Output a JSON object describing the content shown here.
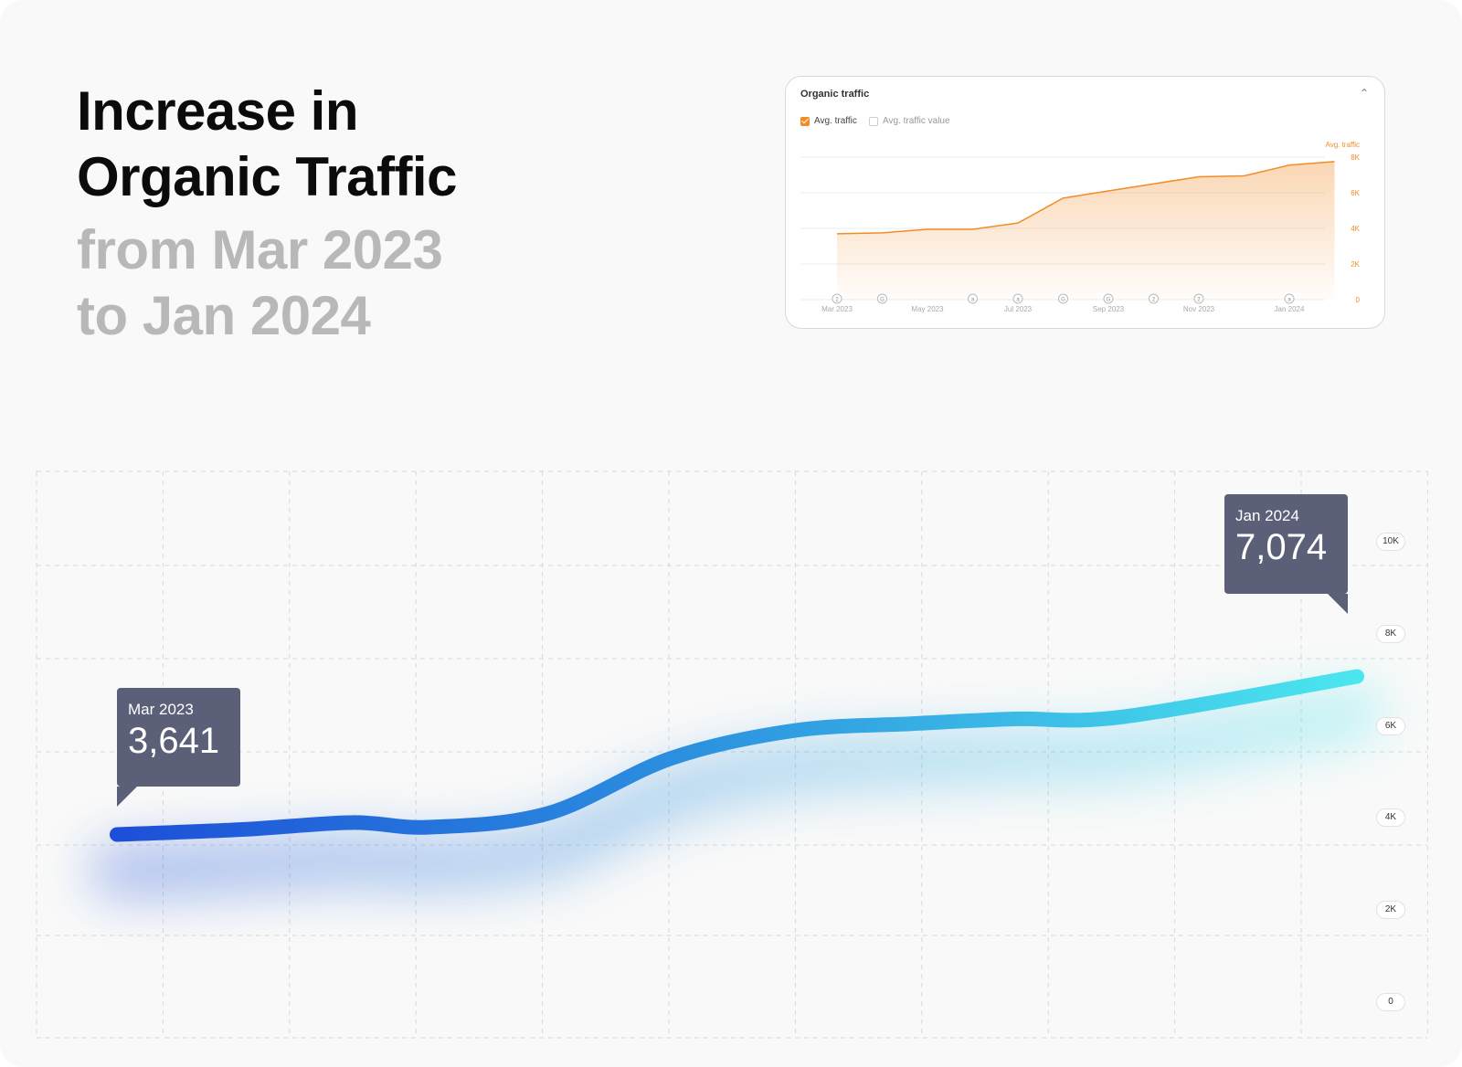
{
  "headline": {
    "line1": "Increase in",
    "line2": "Organic Traffic",
    "line3": "from Mar 2023",
    "line4": "to Jan 2024"
  },
  "colors": {
    "orange": "#f28c28",
    "line_start": "#1d4fd8",
    "line_end": "#4be6ee",
    "tooltip_bg": "#5b5f78"
  },
  "card": {
    "title": "Organic traffic",
    "collapse_icon": "chevron-up-icon",
    "legend": [
      {
        "label": "Avg. traffic",
        "checked": true
      },
      {
        "label": "Avg. traffic value",
        "checked": false
      }
    ]
  },
  "tooltips": {
    "start": {
      "label": "Mar 2023",
      "value": "3,641"
    },
    "end": {
      "label": "Jan 2024",
      "value": "7,074"
    }
  },
  "chart_data": [
    {
      "type": "area",
      "ylabel": "Avg. traffic",
      "ylim": [
        0,
        8000
      ],
      "y_ticks": [
        "0",
        "2K",
        "4K",
        "6K",
        "8K"
      ],
      "x_tick_labels": [
        "Mar 2023",
        "May 2023",
        "Jul 2023",
        "Sep 2023",
        "Nov 2023",
        "Jan 2024"
      ],
      "x": [
        "Mar 2023",
        "Apr 2023",
        "May 2023",
        "Jun 2023",
        "Jul 2023",
        "Aug 2023",
        "Sep 2023",
        "Oct 2023",
        "Nov 2023",
        "Dec 2023",
        "Jan 2024",
        "Feb 2024"
      ],
      "series": [
        {
          "name": "Avg. traffic",
          "values": [
            3700,
            3750,
            3950,
            3950,
            4300,
            5700,
            6100,
            6500,
            6900,
            6950,
            7550,
            7750
          ]
        }
      ],
      "annotations": [
        "2",
        "G",
        "",
        "a",
        "a",
        "G",
        "G",
        "2",
        "2",
        "",
        "a",
        ""
      ],
      "grid": true,
      "legend_placement": "top-left"
    },
    {
      "type": "line",
      "ylim": [
        0,
        10000
      ],
      "y_ticks": [
        "0",
        "2K",
        "4K",
        "6K",
        "8K",
        "10K"
      ],
      "x": [
        "Mar 2023",
        "Apr 2023",
        "May 2023",
        "Jun 2023",
        "Jul 2023",
        "Aug 2023",
        "Sep 2023",
        "Oct 2023",
        "Nov 2023",
        "Dec 2023",
        "Jan 2024"
      ],
      "series": [
        {
          "name": "",
          "values": [
            3641,
            3750,
            3900,
            3800,
            4100,
            5300,
            5900,
            6050,
            6150,
            6200,
            7074
          ]
        }
      ],
      "grid": true
    }
  ]
}
